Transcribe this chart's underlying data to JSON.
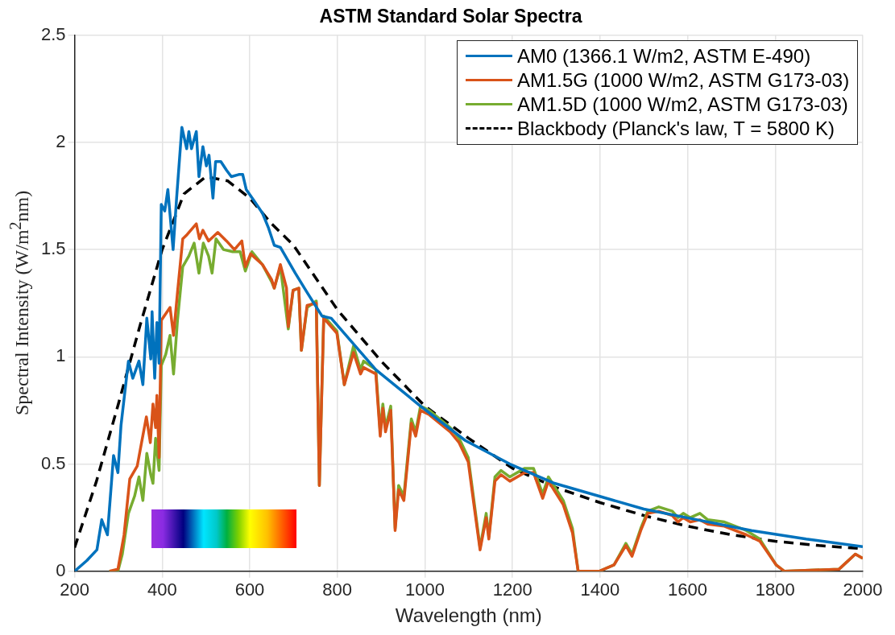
{
  "chart_data": {
    "type": "line",
    "title": "ASTM Standard Solar Spectra",
    "xlabel": "Wavelength (nm)",
    "ylabel": "Spectral Intensity (W/m$^{2}$nm)",
    "xlim": [
      200,
      2000
    ],
    "xticks": [
      200,
      400,
      600,
      800,
      1000,
      1200,
      1400,
      1600,
      1800,
      2000
    ],
    "ylim": [
      0,
      2.5
    ],
    "yticks": [
      0,
      0.5,
      1,
      1.5,
      2,
      2.5
    ],
    "grid": true,
    "legend": "top right",
    "marker": "none",
    "series": [
      {
        "name": "AM0 (1366.1 W/m2, ASTM E-490)",
        "color": "#0072bd",
        "line_style": "solid",
        "x": [
          200,
          228,
          251,
          262,
          275,
          289,
          299,
          306,
          323,
          333,
          347,
          356,
          365,
          374,
          377,
          383,
          388,
          393,
          398,
          406,
          413,
          425,
          433,
          445,
          456,
          461,
          467,
          478,
          484,
          493,
          501,
          507,
          516,
          522,
          534,
          547,
          558,
          575,
          584,
          592,
          609,
          629,
          643,
          656,
          670,
          704,
          731,
          765,
          786,
          888,
          990,
          1092,
          1194,
          1296,
          1398,
          1500,
          1622,
          1746,
          1871,
          2000
        ],
        "values": [
          0,
          0.05,
          0.1,
          0.24,
          0.17,
          0.54,
          0.46,
          0.68,
          0.98,
          0.9,
          0.98,
          0.87,
          1.18,
          0.99,
          1.21,
          0.9,
          1.16,
          0.97,
          1.71,
          1.68,
          1.78,
          1.5,
          1.74,
          2.07,
          1.97,
          2.05,
          1.97,
          2.05,
          1.84,
          1.98,
          1.89,
          1.94,
          1.74,
          1.91,
          1.91,
          1.87,
          1.84,
          1.85,
          1.85,
          1.78,
          1.73,
          1.67,
          1.6,
          1.52,
          1.51,
          1.39,
          1.3,
          1.19,
          1.18,
          0.94,
          0.77,
          0.61,
          0.5,
          0.41,
          0.35,
          0.29,
          0.24,
          0.19,
          0.15,
          0.115
        ]
      },
      {
        "name": "AM1.5G (1000 W/m2, ASTM G173-03)",
        "color": "#d95319",
        "line_style": "solid",
        "x": [
          280,
          299,
          313,
          326,
          343,
          353,
          364,
          373,
          379,
          385,
          388,
          393,
          398,
          418,
          426,
          435,
          447,
          457,
          478,
          485,
          493,
          506,
          527,
          547,
          565,
          582,
          590,
          602,
          629,
          650,
          656,
          670,
          684,
          688,
          699,
          712,
          718,
          731,
          752,
          759,
          769,
          799,
          816,
          837,
          853,
          860,
          888,
          898,
          904,
          910,
          922,
          932,
          940,
          952,
          969,
          979,
          990,
          1010,
          1058,
          1078,
          1099,
          1112,
          1126,
          1140,
          1146,
          1160,
          1174,
          1194,
          1228,
          1248,
          1269,
          1282,
          1316,
          1337,
          1350,
          1398,
          1432,
          1459,
          1473,
          1493,
          1509,
          1534,
          1565,
          1578,
          1590,
          1606,
          1628,
          1646,
          1684,
          1734,
          1765,
          1802,
          1821,
          1946,
          1983,
          2000
        ],
        "values": [
          0,
          0.01,
          0.17,
          0.43,
          0.49,
          0.6,
          0.72,
          0.6,
          0.78,
          0.67,
          0.82,
          0.53,
          1.17,
          1.23,
          1.1,
          1.3,
          1.55,
          1.57,
          1.62,
          1.55,
          1.59,
          1.54,
          1.58,
          1.54,
          1.5,
          1.54,
          1.42,
          1.48,
          1.43,
          1.36,
          1.32,
          1.43,
          1.32,
          1.14,
          1.31,
          1.32,
          1.03,
          1.24,
          1.25,
          0.4,
          1.18,
          1.11,
          0.87,
          1.02,
          0.92,
          0.95,
          0.92,
          0.63,
          0.76,
          0.65,
          0.75,
          0.19,
          0.38,
          0.33,
          0.69,
          0.63,
          0.75,
          0.73,
          0.65,
          0.6,
          0.51,
          0.31,
          0.1,
          0.25,
          0.15,
          0.42,
          0.45,
          0.42,
          0.46,
          0.46,
          0.34,
          0.42,
          0.31,
          0.18,
          0,
          0,
          0.03,
          0.12,
          0.07,
          0.19,
          0.27,
          0.28,
          0.26,
          0.23,
          0.25,
          0.23,
          0.24,
          0.22,
          0.21,
          0.17,
          0.14,
          0.03,
          0,
          0.01,
          0.08,
          0.06
        ]
      },
      {
        "name": "AM1.5D (1000 W/m2, ASTM G173-03)",
        "color": "#77ac30",
        "line_style": "solid",
        "x": [
          279,
          299,
          309,
          323,
          337,
          347,
          356,
          365,
          374,
          379,
          385,
          393,
          398,
          408,
          418,
          426,
          435,
          447,
          461,
          473,
          484,
          494,
          506,
          514,
          523,
          540,
          561,
          578,
          590,
          605,
          629,
          650,
          656,
          670,
          688,
          699,
          712,
          718,
          731,
          752,
          759,
          769,
          799,
          816,
          837,
          853,
          860,
          888,
          898,
          904,
          910,
          922,
          932,
          940,
          952,
          969,
          979,
          990,
          1010,
          1058,
          1078,
          1099,
          1112,
          1126,
          1140,
          1146,
          1160,
          1174,
          1194,
          1228,
          1248,
          1269,
          1282,
          1316,
          1337,
          1350,
          1398,
          1432,
          1459,
          1473,
          1493,
          1509,
          1534,
          1565,
          1578,
          1590,
          1606,
          1628,
          1646,
          1684,
          1734,
          1765,
          1802,
          1821,
          1946,
          1983,
          2000
        ],
        "values": [
          0,
          0,
          0.08,
          0.27,
          0.35,
          0.44,
          0.33,
          0.55,
          0.45,
          0.41,
          0.62,
          0.47,
          0.96,
          1.01,
          1.1,
          0.92,
          1.17,
          1.42,
          1.47,
          1.53,
          1.39,
          1.53,
          1.47,
          1.39,
          1.55,
          1.5,
          1.49,
          1.49,
          1.4,
          1.49,
          1.43,
          1.35,
          1.32,
          1.42,
          1.13,
          1.31,
          1.32,
          1.03,
          1.23,
          1.26,
          0.4,
          1.19,
          1.12,
          0.87,
          1.05,
          0.94,
          0.98,
          0.94,
          0.65,
          0.78,
          0.67,
          0.77,
          0.2,
          0.4,
          0.35,
          0.71,
          0.65,
          0.77,
          0.75,
          0.67,
          0.62,
          0.53,
          0.33,
          0.11,
          0.27,
          0.16,
          0.44,
          0.47,
          0.44,
          0.48,
          0.48,
          0.36,
          0.44,
          0.33,
          0.2,
          0,
          0,
          0.03,
          0.13,
          0.08,
          0.2,
          0.28,
          0.3,
          0.28,
          0.25,
          0.27,
          0.25,
          0.27,
          0.24,
          0.23,
          0.19,
          0.15,
          0.03,
          0,
          0.01,
          0.08,
          0.06
        ]
      },
      {
        "name": "Blackbody (Planck's law, T = 5800 K)",
        "color": "#000000",
        "line_style": "dashed",
        "x": [
          200,
          250,
          300,
          350,
          400,
          450,
          500,
          550,
          600,
          650,
          700,
          750,
          800,
          900,
          1000,
          1100,
          1200,
          1300,
          1400,
          1500,
          1600,
          1700,
          1800,
          1900,
          2000
        ],
        "values": [
          0.11,
          0.42,
          0.78,
          1.15,
          1.5,
          1.76,
          1.84,
          1.82,
          1.74,
          1.62,
          1.52,
          1.37,
          1.22,
          0.98,
          0.77,
          0.62,
          0.48,
          0.39,
          0.32,
          0.26,
          0.21,
          0.17,
          0.14,
          0.12,
          0.105
        ]
      }
    ]
  }
}
